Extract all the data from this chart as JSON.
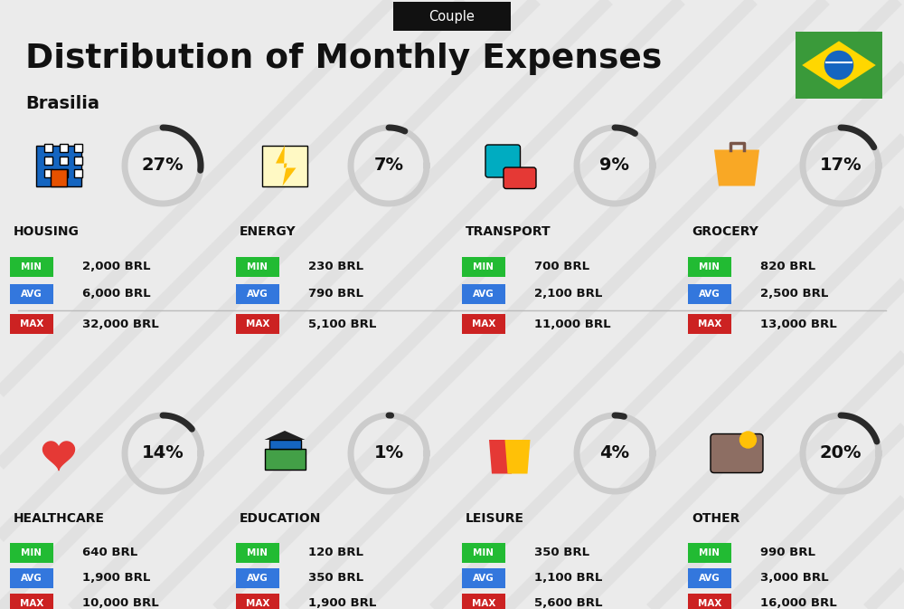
{
  "title": "Distribution of Monthly Expenses",
  "subtitle": "Couple",
  "location": "Brasilia",
  "bg_color": "#ebebeb",
  "categories": [
    {
      "name": "HOUSING",
      "pct": 27,
      "min_val": "2,000 BRL",
      "avg_val": "6,000 BRL",
      "max_val": "32,000 BRL",
      "col": 0,
      "row": 0
    },
    {
      "name": "ENERGY",
      "pct": 7,
      "min_val": "230 BRL",
      "avg_val": "790 BRL",
      "max_val": "5,100 BRL",
      "col": 1,
      "row": 0
    },
    {
      "name": "TRANSPORT",
      "pct": 9,
      "min_val": "700 BRL",
      "avg_val": "2,100 BRL",
      "max_val": "11,000 BRL",
      "col": 2,
      "row": 0
    },
    {
      "name": "GROCERY",
      "pct": 17,
      "min_val": "820 BRL",
      "avg_val": "2,500 BRL",
      "max_val": "13,000 BRL",
      "col": 3,
      "row": 0
    },
    {
      "name": "HEALTHCARE",
      "pct": 14,
      "min_val": "640 BRL",
      "avg_val": "1,900 BRL",
      "max_val": "10,000 BRL",
      "col": 0,
      "row": 1
    },
    {
      "name": "EDUCATION",
      "pct": 1,
      "min_val": "120 BRL",
      "avg_val": "350 BRL",
      "max_val": "1,900 BRL",
      "col": 1,
      "row": 1
    },
    {
      "name": "LEISURE",
      "pct": 4,
      "min_val": "350 BRL",
      "avg_val": "1,100 BRL",
      "max_val": "5,600 BRL",
      "col": 2,
      "row": 1
    },
    {
      "name": "OTHER",
      "pct": 20,
      "min_val": "990 BRL",
      "avg_val": "3,000 BRL",
      "max_val": "16,000 BRL",
      "col": 3,
      "row": 1
    }
  ],
  "min_color": "#22bb33",
  "avg_color": "#3377dd",
  "max_color": "#cc2222",
  "title_color": "#111111",
  "category_name_color": "#111111",
  "pct_color": "#111111",
  "circle_arc_color": "#2a2a2a",
  "circle_bg_color": "#cccccc",
  "stripe_color": "#d0d0d0",
  "separator_color": "#bbbbbb"
}
